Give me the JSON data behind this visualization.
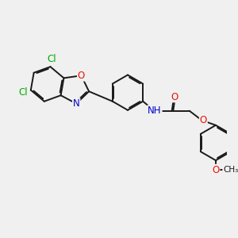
{
  "bg_color": "#f0f0f0",
  "bond_color": "#1a1a1a",
  "bond_width": 1.4,
  "atom_colors": {
    "Cl": "#00aa00",
    "O": "#ee1100",
    "N": "#0000cc",
    "C": "#1a1a1a"
  },
  "font_size": 8.5,
  "dbo": 0.055
}
